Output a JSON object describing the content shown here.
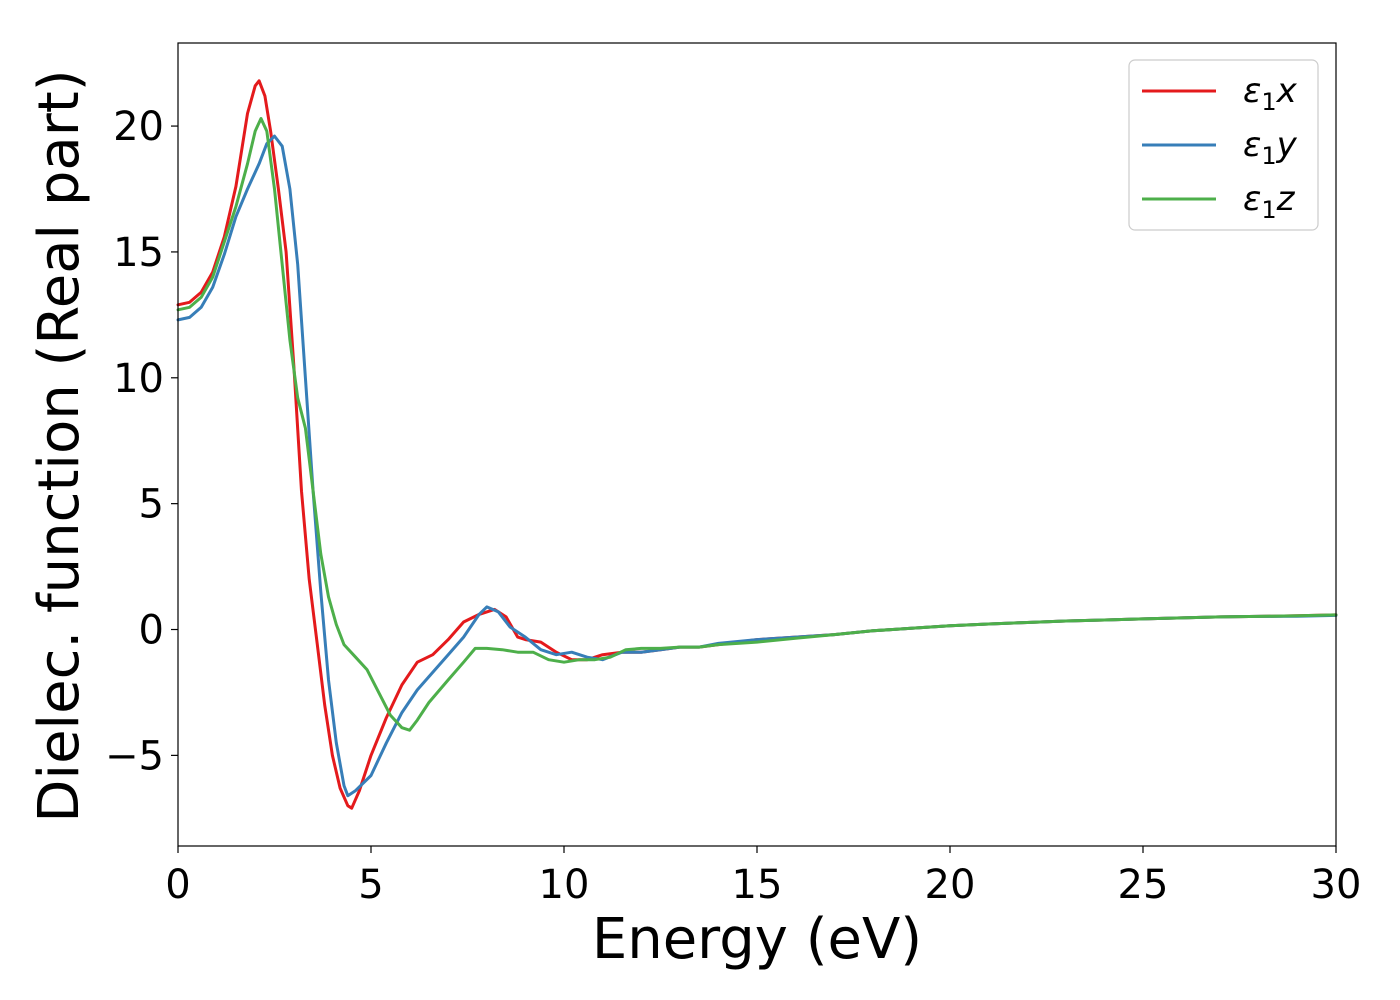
{
  "chart_data": {
    "type": "line",
    "title": "",
    "xlabel": "Energy (eV)",
    "ylabel": "Dielec. function (Real part)",
    "xlim": [
      0,
      30
    ],
    "ylim": [
      -8.6,
      23.3
    ],
    "xticks": [
      0,
      5,
      10,
      15,
      20,
      25,
      30
    ],
    "yticks": [
      -5,
      0,
      5,
      10,
      15,
      20
    ],
    "ytick_labels": [
      "−5",
      "0",
      "5",
      "10",
      "15",
      "20"
    ],
    "grid": false,
    "legend_position": "top-right",
    "series": [
      {
        "name": "ε",
        "name_sub": "1",
        "name_suffix": "x",
        "color": "#e41a1c",
        "points": [
          [
            0,
            12.9
          ],
          [
            0.3,
            13.0
          ],
          [
            0.6,
            13.4
          ],
          [
            0.9,
            14.2
          ],
          [
            1.2,
            15.6
          ],
          [
            1.5,
            17.6
          ],
          [
            1.8,
            20.5
          ],
          [
            2.0,
            21.6
          ],
          [
            2.1,
            21.8
          ],
          [
            2.25,
            21.2
          ],
          [
            2.4,
            19.8
          ],
          [
            2.6,
            17.5
          ],
          [
            2.8,
            15.0
          ],
          [
            3.0,
            10.5
          ],
          [
            3.2,
            5.5
          ],
          [
            3.4,
            2.0
          ],
          [
            3.6,
            -0.5
          ],
          [
            3.8,
            -3.0
          ],
          [
            4.0,
            -5.0
          ],
          [
            4.2,
            -6.3
          ],
          [
            4.4,
            -7.0
          ],
          [
            4.5,
            -7.1
          ],
          [
            4.7,
            -6.4
          ],
          [
            5.0,
            -5.0
          ],
          [
            5.4,
            -3.5
          ],
          [
            5.8,
            -2.2
          ],
          [
            6.2,
            -1.3
          ],
          [
            6.6,
            -1.0
          ],
          [
            7.0,
            -0.4
          ],
          [
            7.4,
            0.3
          ],
          [
            7.8,
            0.6
          ],
          [
            8.2,
            0.8
          ],
          [
            8.5,
            0.5
          ],
          [
            8.8,
            -0.3
          ],
          [
            9.0,
            -0.4
          ],
          [
            9.4,
            -0.5
          ],
          [
            9.8,
            -0.9
          ],
          [
            10.2,
            -1.2
          ],
          [
            10.6,
            -1.2
          ],
          [
            11.0,
            -1.0
          ],
          [
            11.5,
            -0.9
          ],
          [
            12.0,
            -0.9
          ],
          [
            12.5,
            -0.8
          ],
          [
            13.0,
            -0.7
          ],
          [
            13.5,
            -0.7
          ],
          [
            14.0,
            -0.6
          ],
          [
            15.0,
            -0.4
          ],
          [
            16.0,
            -0.3
          ],
          [
            17.0,
            -0.2
          ],
          [
            18.0,
            -0.05
          ],
          [
            19.0,
            0.05
          ],
          [
            20.0,
            0.15
          ],
          [
            21.0,
            0.22
          ],
          [
            22.0,
            0.28
          ],
          [
            23.0,
            0.34
          ],
          [
            24.0,
            0.38
          ],
          [
            25.0,
            0.42
          ],
          [
            26.0,
            0.46
          ],
          [
            27.0,
            0.5
          ],
          [
            28.0,
            0.52
          ],
          [
            29.0,
            0.55
          ],
          [
            30.0,
            0.58
          ]
        ]
      },
      {
        "name": "ε",
        "name_sub": "1",
        "name_suffix": "y",
        "color": "#377eb8",
        "points": [
          [
            0,
            12.3
          ],
          [
            0.3,
            12.4
          ],
          [
            0.6,
            12.8
          ],
          [
            0.9,
            13.6
          ],
          [
            1.2,
            14.9
          ],
          [
            1.5,
            16.4
          ],
          [
            1.8,
            17.5
          ],
          [
            2.1,
            18.5
          ],
          [
            2.3,
            19.3
          ],
          [
            2.5,
            19.6
          ],
          [
            2.7,
            19.2
          ],
          [
            2.9,
            17.5
          ],
          [
            3.1,
            14.5
          ],
          [
            3.3,
            10.0
          ],
          [
            3.5,
            5.5
          ],
          [
            3.7,
            1.5
          ],
          [
            3.9,
            -2.0
          ],
          [
            4.1,
            -4.5
          ],
          [
            4.3,
            -6.2
          ],
          [
            4.4,
            -6.6
          ],
          [
            4.6,
            -6.4
          ],
          [
            5.0,
            -5.8
          ],
          [
            5.4,
            -4.5
          ],
          [
            5.8,
            -3.3
          ],
          [
            6.2,
            -2.4
          ],
          [
            6.6,
            -1.7
          ],
          [
            7.0,
            -1.0
          ],
          [
            7.4,
            -0.3
          ],
          [
            7.8,
            0.6
          ],
          [
            8.0,
            0.9
          ],
          [
            8.3,
            0.7
          ],
          [
            8.6,
            0.1
          ],
          [
            9.0,
            -0.3
          ],
          [
            9.4,
            -0.8
          ],
          [
            9.8,
            -1.0
          ],
          [
            10.2,
            -0.9
          ],
          [
            10.6,
            -1.1
          ],
          [
            11.0,
            -1.2
          ],
          [
            11.5,
            -0.9
          ],
          [
            12.0,
            -0.9
          ],
          [
            12.5,
            -0.8
          ],
          [
            13.0,
            -0.7
          ],
          [
            13.5,
            -0.7
          ],
          [
            14.0,
            -0.55
          ],
          [
            15.0,
            -0.4
          ],
          [
            16.0,
            -0.3
          ],
          [
            17.0,
            -0.2
          ],
          [
            18.0,
            -0.05
          ],
          [
            19.0,
            0.05
          ],
          [
            20.0,
            0.15
          ],
          [
            21.0,
            0.22
          ],
          [
            22.0,
            0.28
          ],
          [
            23.0,
            0.34
          ],
          [
            24.0,
            0.38
          ],
          [
            25.0,
            0.42
          ],
          [
            26.0,
            0.46
          ],
          [
            27.0,
            0.5
          ],
          [
            28.0,
            0.52
          ],
          [
            29.0,
            0.53
          ],
          [
            30.0,
            0.56
          ]
        ]
      },
      {
        "name": "ε",
        "name_sub": "1",
        "name_suffix": "z",
        "color": "#4daf4a",
        "points": [
          [
            0,
            12.7
          ],
          [
            0.3,
            12.8
          ],
          [
            0.6,
            13.2
          ],
          [
            0.9,
            14.0
          ],
          [
            1.2,
            15.4
          ],
          [
            1.5,
            16.8
          ],
          [
            1.8,
            18.5
          ],
          [
            2.0,
            19.8
          ],
          [
            2.15,
            20.3
          ],
          [
            2.3,
            19.8
          ],
          [
            2.5,
            17.5
          ],
          [
            2.7,
            14.5
          ],
          [
            2.9,
            11.5
          ],
          [
            3.1,
            9.2
          ],
          [
            3.3,
            8.0
          ],
          [
            3.5,
            5.5
          ],
          [
            3.7,
            3.0
          ],
          [
            3.9,
            1.3
          ],
          [
            4.1,
            0.2
          ],
          [
            4.3,
            -0.6
          ],
          [
            4.6,
            -1.1
          ],
          [
            4.9,
            -1.6
          ],
          [
            5.2,
            -2.5
          ],
          [
            5.5,
            -3.4
          ],
          [
            5.8,
            -3.9
          ],
          [
            6.0,
            -4.0
          ],
          [
            6.2,
            -3.6
          ],
          [
            6.5,
            -2.9
          ],
          [
            7.0,
            -2.0
          ],
          [
            7.4,
            -1.3
          ],
          [
            7.7,
            -0.75
          ],
          [
            8.0,
            -0.75
          ],
          [
            8.4,
            -0.8
          ],
          [
            8.8,
            -0.9
          ],
          [
            9.2,
            -0.9
          ],
          [
            9.6,
            -1.2
          ],
          [
            10.0,
            -1.3
          ],
          [
            10.4,
            -1.2
          ],
          [
            10.8,
            -1.2
          ],
          [
            11.2,
            -1.1
          ],
          [
            11.6,
            -0.8
          ],
          [
            12.0,
            -0.75
          ],
          [
            12.5,
            -0.75
          ],
          [
            13.0,
            -0.7
          ],
          [
            13.5,
            -0.7
          ],
          [
            14.0,
            -0.6
          ],
          [
            15.0,
            -0.5
          ],
          [
            16.0,
            -0.35
          ],
          [
            17.0,
            -0.2
          ],
          [
            18.0,
            -0.05
          ],
          [
            19.0,
            0.05
          ],
          [
            20.0,
            0.15
          ],
          [
            21.0,
            0.22
          ],
          [
            22.0,
            0.28
          ],
          [
            23.0,
            0.34
          ],
          [
            24.0,
            0.38
          ],
          [
            25.0,
            0.42
          ],
          [
            26.0,
            0.46
          ],
          [
            27.0,
            0.5
          ],
          [
            28.0,
            0.52
          ],
          [
            29.0,
            0.55
          ],
          [
            30.0,
            0.58
          ]
        ]
      }
    ]
  }
}
